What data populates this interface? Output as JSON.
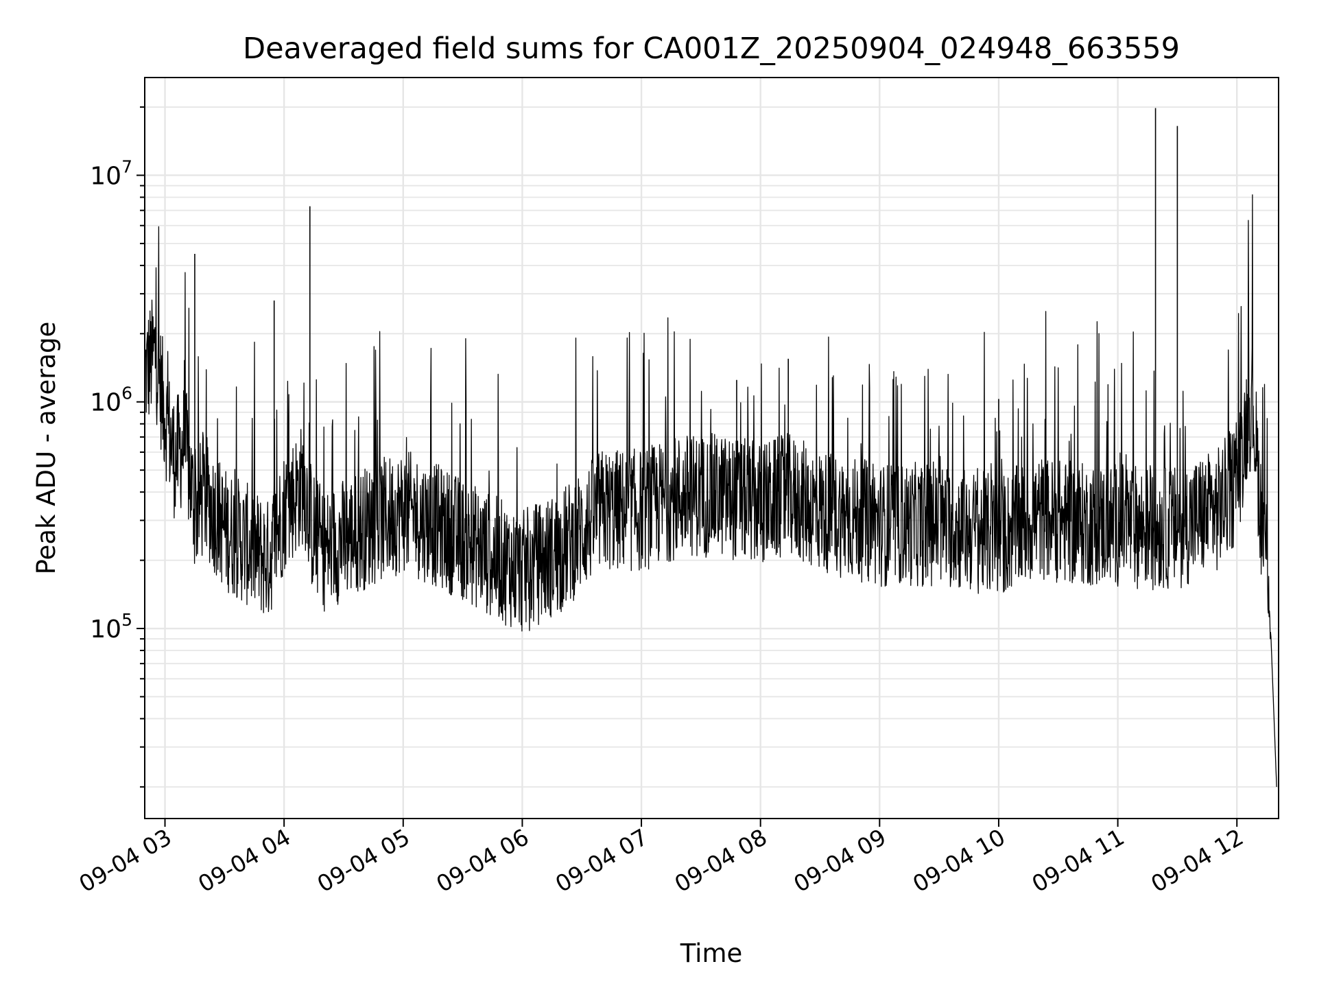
{
  "chart_data": {
    "type": "line",
    "title": "Deaveraged field sums for CA001Z_20250904_024948_663559",
    "xlabel": "Time",
    "ylabel": "Peak ADU - average",
    "yscale": "log",
    "ylim": [
      14500,
      27000000
    ],
    "xlim": [
      "2025-09-04 02:49:48",
      "2025-09-04 12:21:00"
    ],
    "x_ticks": [
      "09-04 03",
      "09-04 04",
      "09-04 05",
      "09-04 06",
      "09-04 07",
      "09-04 08",
      "09-04 09",
      "09-04 10",
      "09-04 11",
      "09-04 12"
    ],
    "y_ticks": [
      {
        "base": "10",
        "exp": "5",
        "value": 100000
      },
      {
        "base": "10",
        "exp": "6",
        "value": 1000000
      },
      {
        "base": "10",
        "exp": "7",
        "value": 10000000
      }
    ],
    "grid": true,
    "line_color": "#000000",
    "series": [
      {
        "x": [
          "2025-09-04 02:50",
          "2025-09-04 02:55",
          "2025-09-04 03:00",
          "2025-09-04 03:05",
          "2025-09-04 03:10",
          "2025-09-04 03:15",
          "2025-09-04 03:20",
          "2025-09-04 03:30",
          "2025-09-04 03:45",
          "2025-09-04 03:52",
          "2025-09-04 04:00",
          "2025-09-04 04:10",
          "2025-09-04 04:14",
          "2025-09-04 04:20",
          "2025-09-04 04:40",
          "2025-09-04 05:00",
          "2025-09-04 05:20",
          "2025-09-04 05:40",
          "2025-09-04 06:00",
          "2025-09-04 06:20",
          "2025-09-04 06:40",
          "2025-09-04 07:00",
          "2025-09-04 07:20",
          "2025-09-04 07:40",
          "2025-09-04 08:00",
          "2025-09-04 08:14",
          "2025-09-04 08:30",
          "2025-09-04 09:00",
          "2025-09-04 09:30",
          "2025-09-04 10:00",
          "2025-09-04 10:20",
          "2025-09-04 10:40",
          "2025-09-04 11:00",
          "2025-09-04 11:19",
          "2025-09-04 11:30",
          "2025-09-04 11:40",
          "2025-09-04 11:50",
          "2025-09-04 12:00",
          "2025-09-04 12:05",
          "2025-09-04 12:08",
          "2025-09-04 12:12",
          "2025-09-04 12:16",
          "2025-09-04 12:20"
        ],
        "y": [
          1200000,
          1500000,
          800000,
          500000,
          600000,
          300000,
          350000,
          250000,
          200000,
          180000,
          300000,
          400000,
          250000,
          200000,
          250000,
          300000,
          250000,
          200000,
          160000,
          200000,
          300000,
          300000,
          350000,
          350000,
          320000,
          350000,
          300000,
          260000,
          260000,
          230000,
          280000,
          260000,
          260000,
          250000,
          250000,
          280000,
          300000,
          400000,
          750000,
          900000,
          300000,
          170000,
          20000
        ]
      }
    ],
    "spikes": [
      {
        "x": "2025-09-04 03:15",
        "y": 4500000
      },
      {
        "x": "2025-09-04 03:55",
        "y": 2800000
      },
      {
        "x": "2025-09-04 04:13",
        "y": 7300000
      },
      {
        "x": "2025-09-04 07:48",
        "y": 1250000
      },
      {
        "x": "2025-09-04 08:14",
        "y": 1550000
      },
      {
        "x": "2025-09-04 10:00",
        "y": 1030000
      },
      {
        "x": "2025-09-04 11:19",
        "y": 19800000
      },
      {
        "x": "2025-09-04 11:30",
        "y": 16500000
      }
    ]
  }
}
